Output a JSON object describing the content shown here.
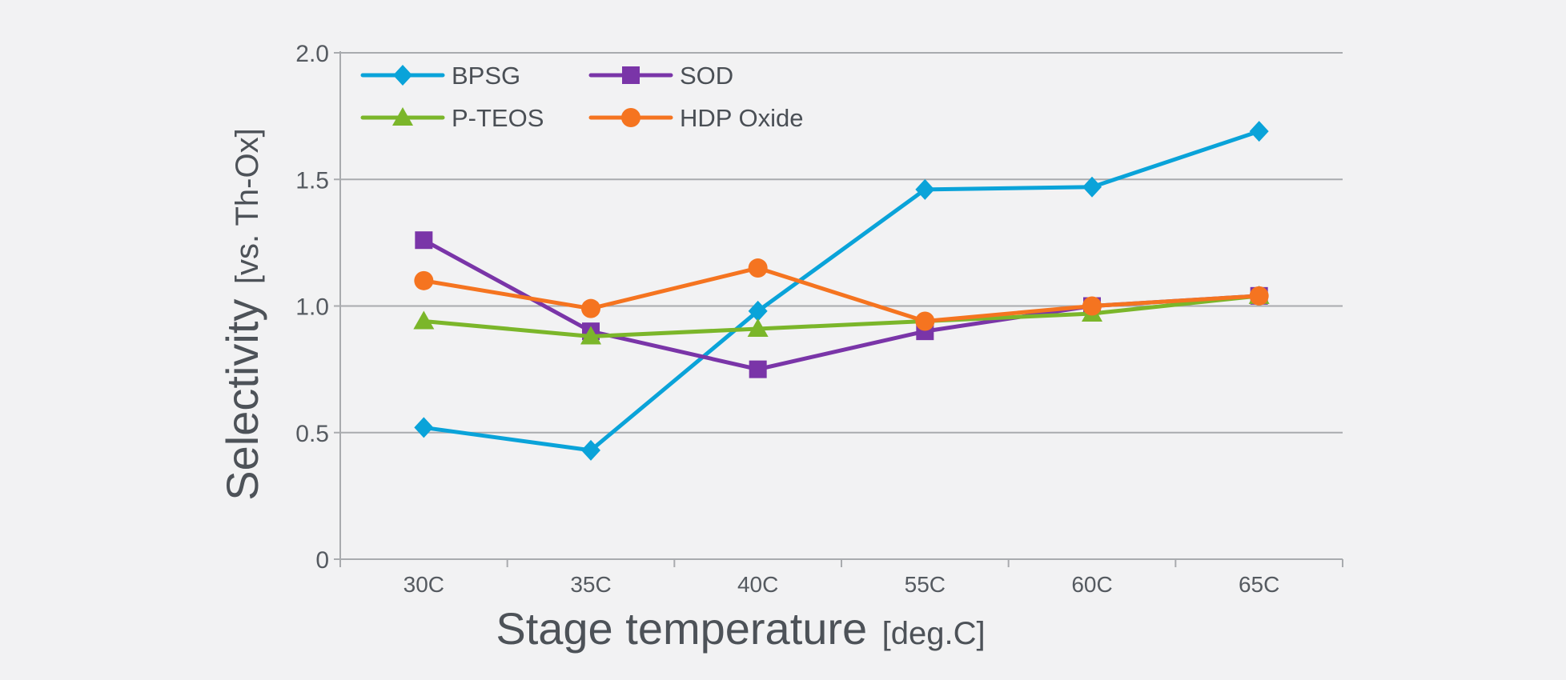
{
  "chart_data": {
    "type": "line",
    "categories": [
      "30C",
      "35C",
      "40C",
      "55C",
      "60C",
      "65C"
    ],
    "xlabel": "Stage temperature",
    "xlabel_unit": "[deg.C]",
    "ylabel": "Selectivity",
    "ylabel_unit": "[vs. Th-Ox]",
    "ylim": [
      0,
      2.0
    ],
    "yticks": [
      "0",
      "0.5",
      "1.0",
      "1.5",
      "2.0"
    ],
    "grid": true,
    "legend_position": "top-left",
    "series": [
      {
        "name": "BPSG",
        "color": "#0aa3d9",
        "marker": "diamond",
        "values": [
          0.52,
          0.43,
          0.98,
          1.46,
          1.47,
          1.69
        ]
      },
      {
        "name": "SOD",
        "color": "#7a35a8",
        "marker": "square",
        "values": [
          1.26,
          0.9,
          0.75,
          0.9,
          1.0,
          1.04
        ]
      },
      {
        "name": "P-TEOS",
        "color": "#7bb62a",
        "marker": "triangle",
        "values": [
          0.94,
          0.88,
          0.91,
          null,
          0.97,
          1.04
        ]
      },
      {
        "name": "HDP Oxide",
        "color": "#f57420",
        "marker": "circle",
        "values": [
          1.1,
          0.99,
          1.15,
          0.94,
          1.0,
          1.04
        ]
      }
    ]
  }
}
